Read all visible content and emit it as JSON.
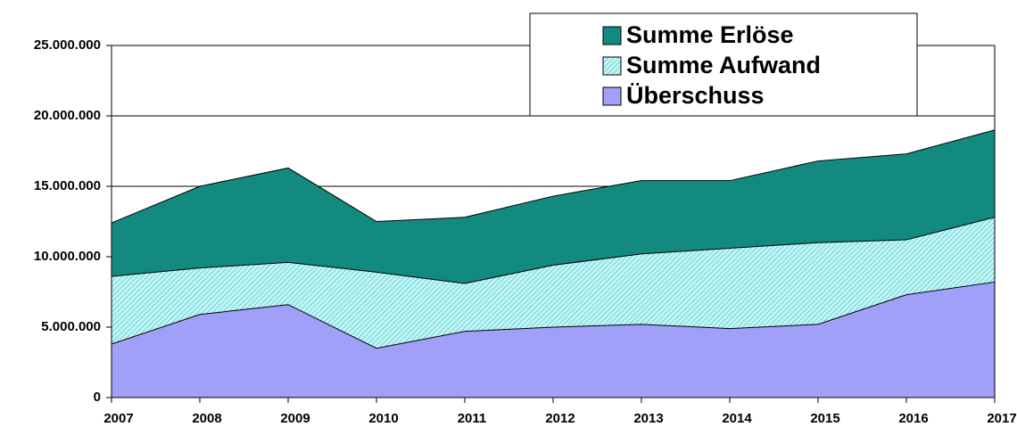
{
  "chart_data": {
    "type": "area",
    "categories": [
      "2007",
      "2008",
      "2009",
      "2010",
      "2011",
      "2012",
      "2013",
      "2014",
      "2015",
      "2016",
      "2017"
    ],
    "series": [
      {
        "name": "Summe Erlöse",
        "color": "#138a80",
        "values": [
          12400000,
          15000000,
          16300000,
          12500000,
          12800000,
          14300000,
          15400000,
          15400000,
          16800000,
          17300000,
          19000000
        ]
      },
      {
        "name": "Summe Aufwand",
        "color": "#9bf0f0",
        "values": [
          8600000,
          9200000,
          9600000,
          8900000,
          8100000,
          9400000,
          10200000,
          10600000,
          11000000,
          11200000,
          12800000
        ]
      },
      {
        "name": "Überschuss",
        "color": "#a0a0f8",
        "values": [
          3800000,
          5900000,
          6600000,
          3500000,
          4700000,
          5000000,
          5200000,
          4900000,
          5200000,
          7300000,
          8200000
        ]
      }
    ],
    "ylim": [
      0,
      25000000
    ],
    "yticks": [
      0,
      {
        "value": 5000000,
        "label": "5.000.000"
      },
      {
        "value": 10000000,
        "label": "10.000.000"
      },
      {
        "value": 15000000,
        "label": "15.000.000"
      },
      {
        "value": 20000000,
        "label": "20.000.000"
      },
      {
        "value": 25000000,
        "label": "25.000.000"
      }
    ],
    "grid": true,
    "legend": "top-right"
  }
}
